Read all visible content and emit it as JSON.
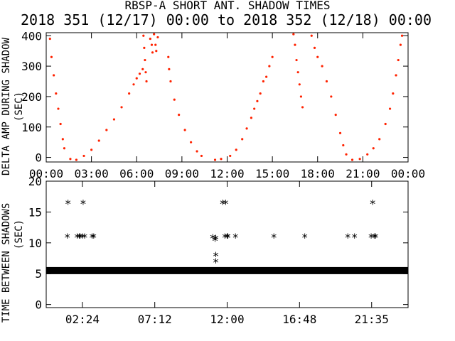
{
  "title": "RBSP-A SHORT ANT. SHADOW TIMES",
  "subtitle": "2018 351 (12/17) 00:00 to 2018 352 (12/18) 00:00",
  "colors": {
    "background": "#ffffff",
    "axes": "#000000",
    "top_series": "#ff2200",
    "bottom_series": "#000000"
  },
  "chart_data": [
    {
      "type": "scatter",
      "ylabel": "DELTA AMP DURING SHADOW",
      "ylabel_sub": "(SEC)",
      "xlim": [
        "00:00",
        "24:00"
      ],
      "ylim": [
        -15,
        410
      ],
      "x_ticks": [
        "00:00",
        "03:00",
        "06:00",
        "09:00",
        "12:00",
        "15:00",
        "18:00",
        "21:00",
        "00:00"
      ],
      "y_ticks": [
        0,
        100,
        200,
        300,
        400
      ],
      "marker": "dot",
      "series": [
        {
          "color": "#ff2200",
          "points": [
            [
              0.25,
              390
            ],
            [
              0.35,
              330
            ],
            [
              0.5,
              270
            ],
            [
              0.65,
              210
            ],
            [
              0.8,
              160
            ],
            [
              0.95,
              110
            ],
            [
              1.1,
              60
            ],
            [
              1.2,
              30
            ],
            [
              1.6,
              -5
            ],
            [
              2.0,
              -8
            ],
            [
              2.5,
              5
            ],
            [
              3.0,
              25
            ],
            [
              3.5,
              55
            ],
            [
              4.0,
              90
            ],
            [
              4.5,
              125
            ],
            [
              5.0,
              165
            ],
            [
              5.5,
              210
            ],
            [
              5.8,
              240
            ],
            [
              6.0,
              260
            ],
            [
              6.2,
              275
            ],
            [
              6.4,
              290
            ],
            [
              6.45,
              400
            ],
            [
              6.5,
              360
            ],
            [
              6.55,
              320
            ],
            [
              6.6,
              280
            ],
            [
              6.65,
              250
            ],
            [
              6.9,
              390
            ],
            [
              7.0,
              370
            ],
            [
              7.05,
              345
            ],
            [
              7.15,
              405
            ],
            [
              7.25,
              370
            ],
            [
              7.3,
              350
            ],
            [
              7.4,
              395
            ],
            [
              8.1,
              330
            ],
            [
              8.15,
              290
            ],
            [
              8.25,
              250
            ],
            [
              8.5,
              190
            ],
            [
              8.8,
              140
            ],
            [
              9.2,
              90
            ],
            [
              9.6,
              50
            ],
            [
              10.0,
              20
            ],
            [
              10.3,
              5
            ],
            [
              11.2,
              -8
            ],
            [
              11.6,
              -5
            ],
            [
              12.2,
              5
            ],
            [
              12.6,
              25
            ],
            [
              13.0,
              60
            ],
            [
              13.3,
              95
            ],
            [
              13.6,
              130
            ],
            [
              13.8,
              160
            ],
            [
              14.0,
              185
            ],
            [
              14.2,
              210
            ],
            [
              14.4,
              250
            ],
            [
              14.6,
              265
            ],
            [
              14.8,
              300
            ],
            [
              15.0,
              330
            ],
            [
              16.4,
              405
            ],
            [
              16.5,
              370
            ],
            [
              16.6,
              320
            ],
            [
              16.7,
              280
            ],
            [
              16.8,
              240
            ],
            [
              16.9,
              200
            ],
            [
              17.0,
              165
            ],
            [
              17.6,
              400
            ],
            [
              17.8,
              360
            ],
            [
              18.0,
              330
            ],
            [
              18.3,
              300
            ],
            [
              18.6,
              250
            ],
            [
              18.9,
              200
            ],
            [
              19.2,
              140
            ],
            [
              19.5,
              80
            ],
            [
              19.7,
              40
            ],
            [
              19.9,
              10
            ],
            [
              20.3,
              -8
            ],
            [
              20.8,
              -5
            ],
            [
              21.3,
              10
            ],
            [
              21.7,
              30
            ],
            [
              22.1,
              60
            ],
            [
              22.5,
              110
            ],
            [
              22.8,
              160
            ],
            [
              23.0,
              210
            ],
            [
              23.2,
              270
            ],
            [
              23.35,
              320
            ],
            [
              23.5,
              370
            ],
            [
              23.6,
              400
            ]
          ]
        }
      ]
    },
    {
      "type": "scatter",
      "ylabel": "TIME BETWEEN SHADOWS",
      "ylabel_sub": "(SEC)",
      "xlim": [
        "00:00",
        "24:00"
      ],
      "ylim": [
        -0.5,
        20
      ],
      "x_ticks": [
        "02:24",
        "07:12",
        "12:00",
        "16:48",
        "21:35"
      ],
      "y_ticks": [
        0,
        5,
        10,
        15,
        20
      ],
      "marker": "asterisk",
      "baseline": {
        "x_range": [
          "00:00",
          "24:00"
        ],
        "y": 5.5
      },
      "series": [
        {
          "color": "#000000",
          "points": [
            [
              1.45,
              16.5
            ],
            [
              1.4,
              11
            ],
            [
              2.05,
              11
            ],
            [
              2.2,
              11
            ],
            [
              2.25,
              11
            ],
            [
              2.4,
              11
            ],
            [
              2.45,
              16.5
            ],
            [
              2.55,
              11
            ],
            [
              3.05,
              11
            ],
            [
              3.15,
              11
            ],
            [
              11.05,
              10.9
            ],
            [
              11.2,
              10.5
            ],
            [
              11.25,
              10.8
            ],
            [
              11.25,
              8.0
            ],
            [
              11.25,
              7.0
            ],
            [
              11.7,
              16.5
            ],
            [
              11.9,
              16.5
            ],
            [
              11.85,
              11
            ],
            [
              12.0,
              11
            ],
            [
              12.05,
              11
            ],
            [
              12.55,
              11
            ],
            [
              15.1,
              11
            ],
            [
              17.15,
              11
            ],
            [
              20.0,
              11
            ],
            [
              20.45,
              11
            ],
            [
              21.65,
              16.5
            ],
            [
              21.55,
              11
            ],
            [
              21.75,
              11
            ],
            [
              21.85,
              11
            ]
          ]
        }
      ]
    }
  ]
}
